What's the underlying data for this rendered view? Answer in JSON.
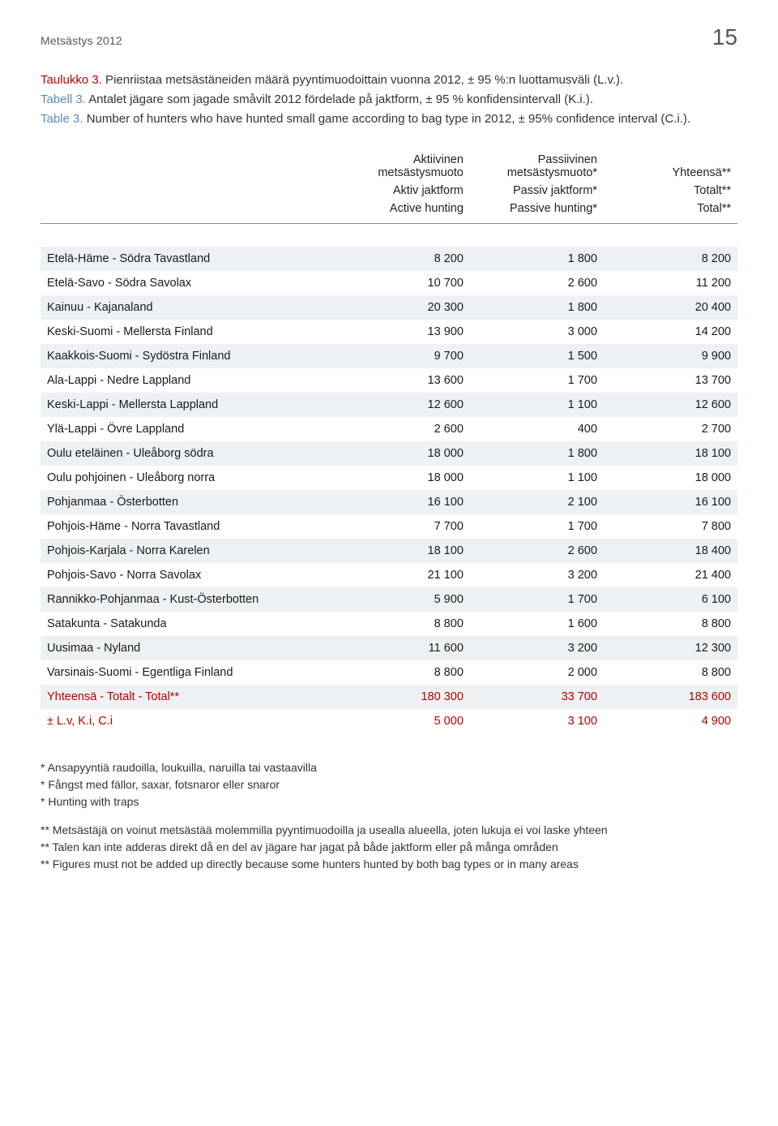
{
  "header": {
    "running_head": "Metsästys 2012",
    "page_number": "15"
  },
  "caption": {
    "fi_label": "Taulukko 3.",
    "fi_text": " Pienriistaa metsästäneiden määrä pyyntimuodoittain vuonna 2012, ± 95 %:n luottamusväli (L.v.).",
    "sv_label": "Tabell 3.",
    "sv_text": " Antalet jägare som jagade småvilt 2012 fördelade på jaktform, ± 95 % konfidensintervall (K.i.).",
    "en_label": "Table 3.",
    "en_text": " Number of hunters who have hunted small game according to bag type in 2012, ± 95% confidence interval (C.i.)."
  },
  "table": {
    "columns": {
      "col1": {
        "fi": "Aktiivinen metsästysmuoto",
        "sv": "Aktiv jaktform",
        "en": "Active hunting"
      },
      "col2": {
        "fi": "Passiivinen metsästysmuoto*",
        "sv": "Passiv jaktform*",
        "en": "Passive hunting*"
      },
      "col3": {
        "fi": "Yhteensä**",
        "sv": "Totalt**",
        "en": "Total**"
      }
    },
    "rows": [
      {
        "region": "Etelä-Häme - Södra Tavastland",
        "v1": "8 200",
        "v2": "1 800",
        "v3": "8 200"
      },
      {
        "region": "Etelä-Savo - Södra Savolax",
        "v1": "10 700",
        "v2": "2 600",
        "v3": "11 200"
      },
      {
        "region": "Kainuu - Kajanaland",
        "v1": "20 300",
        "v2": "1 800",
        "v3": "20 400"
      },
      {
        "region": "Keski-Suomi - Mellersta Finland",
        "v1": "13 900",
        "v2": "3 000",
        "v3": "14 200"
      },
      {
        "region": "Kaakkois-Suomi - Sydöstra Finland",
        "v1": "9 700",
        "v2": "1 500",
        "v3": "9 900"
      },
      {
        "region": "Ala-Lappi - Nedre Lappland",
        "v1": "13 600",
        "v2": "1 700",
        "v3": "13 700"
      },
      {
        "region": "Keski-Lappi - Mellersta Lappland",
        "v1": "12 600",
        "v2": "1 100",
        "v3": "12 600"
      },
      {
        "region": "Ylä-Lappi - Övre Lappland",
        "v1": "2 600",
        "v2": "400",
        "v3": "2 700"
      },
      {
        "region": "Oulu eteläinen - Uleåborg södra",
        "v1": "18 000",
        "v2": "1 800",
        "v3": "18 100"
      },
      {
        "region": "Oulu pohjoinen - Uleåborg norra",
        "v1": "18 000",
        "v2": "1 100",
        "v3": "18 000"
      },
      {
        "region": "Pohjanmaa - Österbotten",
        "v1": "16 100",
        "v2": "2 100",
        "v3": "16 100"
      },
      {
        "region": "Pohjois-Häme - Norra Tavastland",
        "v1": "7 700",
        "v2": "1 700",
        "v3": "7 800"
      },
      {
        "region": "Pohjois-Karjala - Norra Karelen",
        "v1": "18 100",
        "v2": "2 600",
        "v3": "18 400"
      },
      {
        "region": "Pohjois-Savo - Norra Savolax",
        "v1": "21 100",
        "v2": "3 200",
        "v3": "21 400"
      },
      {
        "region": "Rannikko-Pohjanmaa - Kust-Österbotten",
        "v1": "5 900",
        "v2": "1 700",
        "v3": "6 100"
      },
      {
        "region": "Satakunta - Satakunda",
        "v1": "8 800",
        "v2": "1 600",
        "v3": "8 800"
      },
      {
        "region": "Uusimaa - Nyland",
        "v1": "11 600",
        "v2": "3 200",
        "v3": "12 300"
      },
      {
        "region": "Varsinais-Suomi - Egentliga Finland",
        "v1": "8 800",
        "v2": "2 000",
        "v3": "8 800"
      }
    ],
    "total_row": {
      "region": "Yhteensä - Totalt - Total**",
      "v1": "180 300",
      "v2": "33 700",
      "v3": "183 600"
    },
    "pm_row": {
      "region": "±  L.v, K.i, C.i",
      "v1": "5 000",
      "v2": "3 100",
      "v3": "4 900"
    },
    "colors": {
      "stripe_bg": "#eef1f3",
      "accent_red": "#b40000",
      "rule": "#888888"
    }
  },
  "footnotes": {
    "star": [
      "* Ansapyyntiä raudoilla, loukuilla, naruilla tai vastaavilla",
      "* Fångst med fällor, saxar, fotsnaror eller snaror",
      "* Hunting with traps"
    ],
    "dblstar": [
      "** Metsästäjä on voinut metsästää molemmilla pyyntimuodoilla ja usealla alueella, joten lukuja ei voi laske yhteen",
      "** Talen kan inte adderas direkt då en del av jägare har jagat på både jaktform eller på många områden",
      "** Figures must not be added up directly because some hunters hunted by both bag types or in many areas"
    ]
  }
}
